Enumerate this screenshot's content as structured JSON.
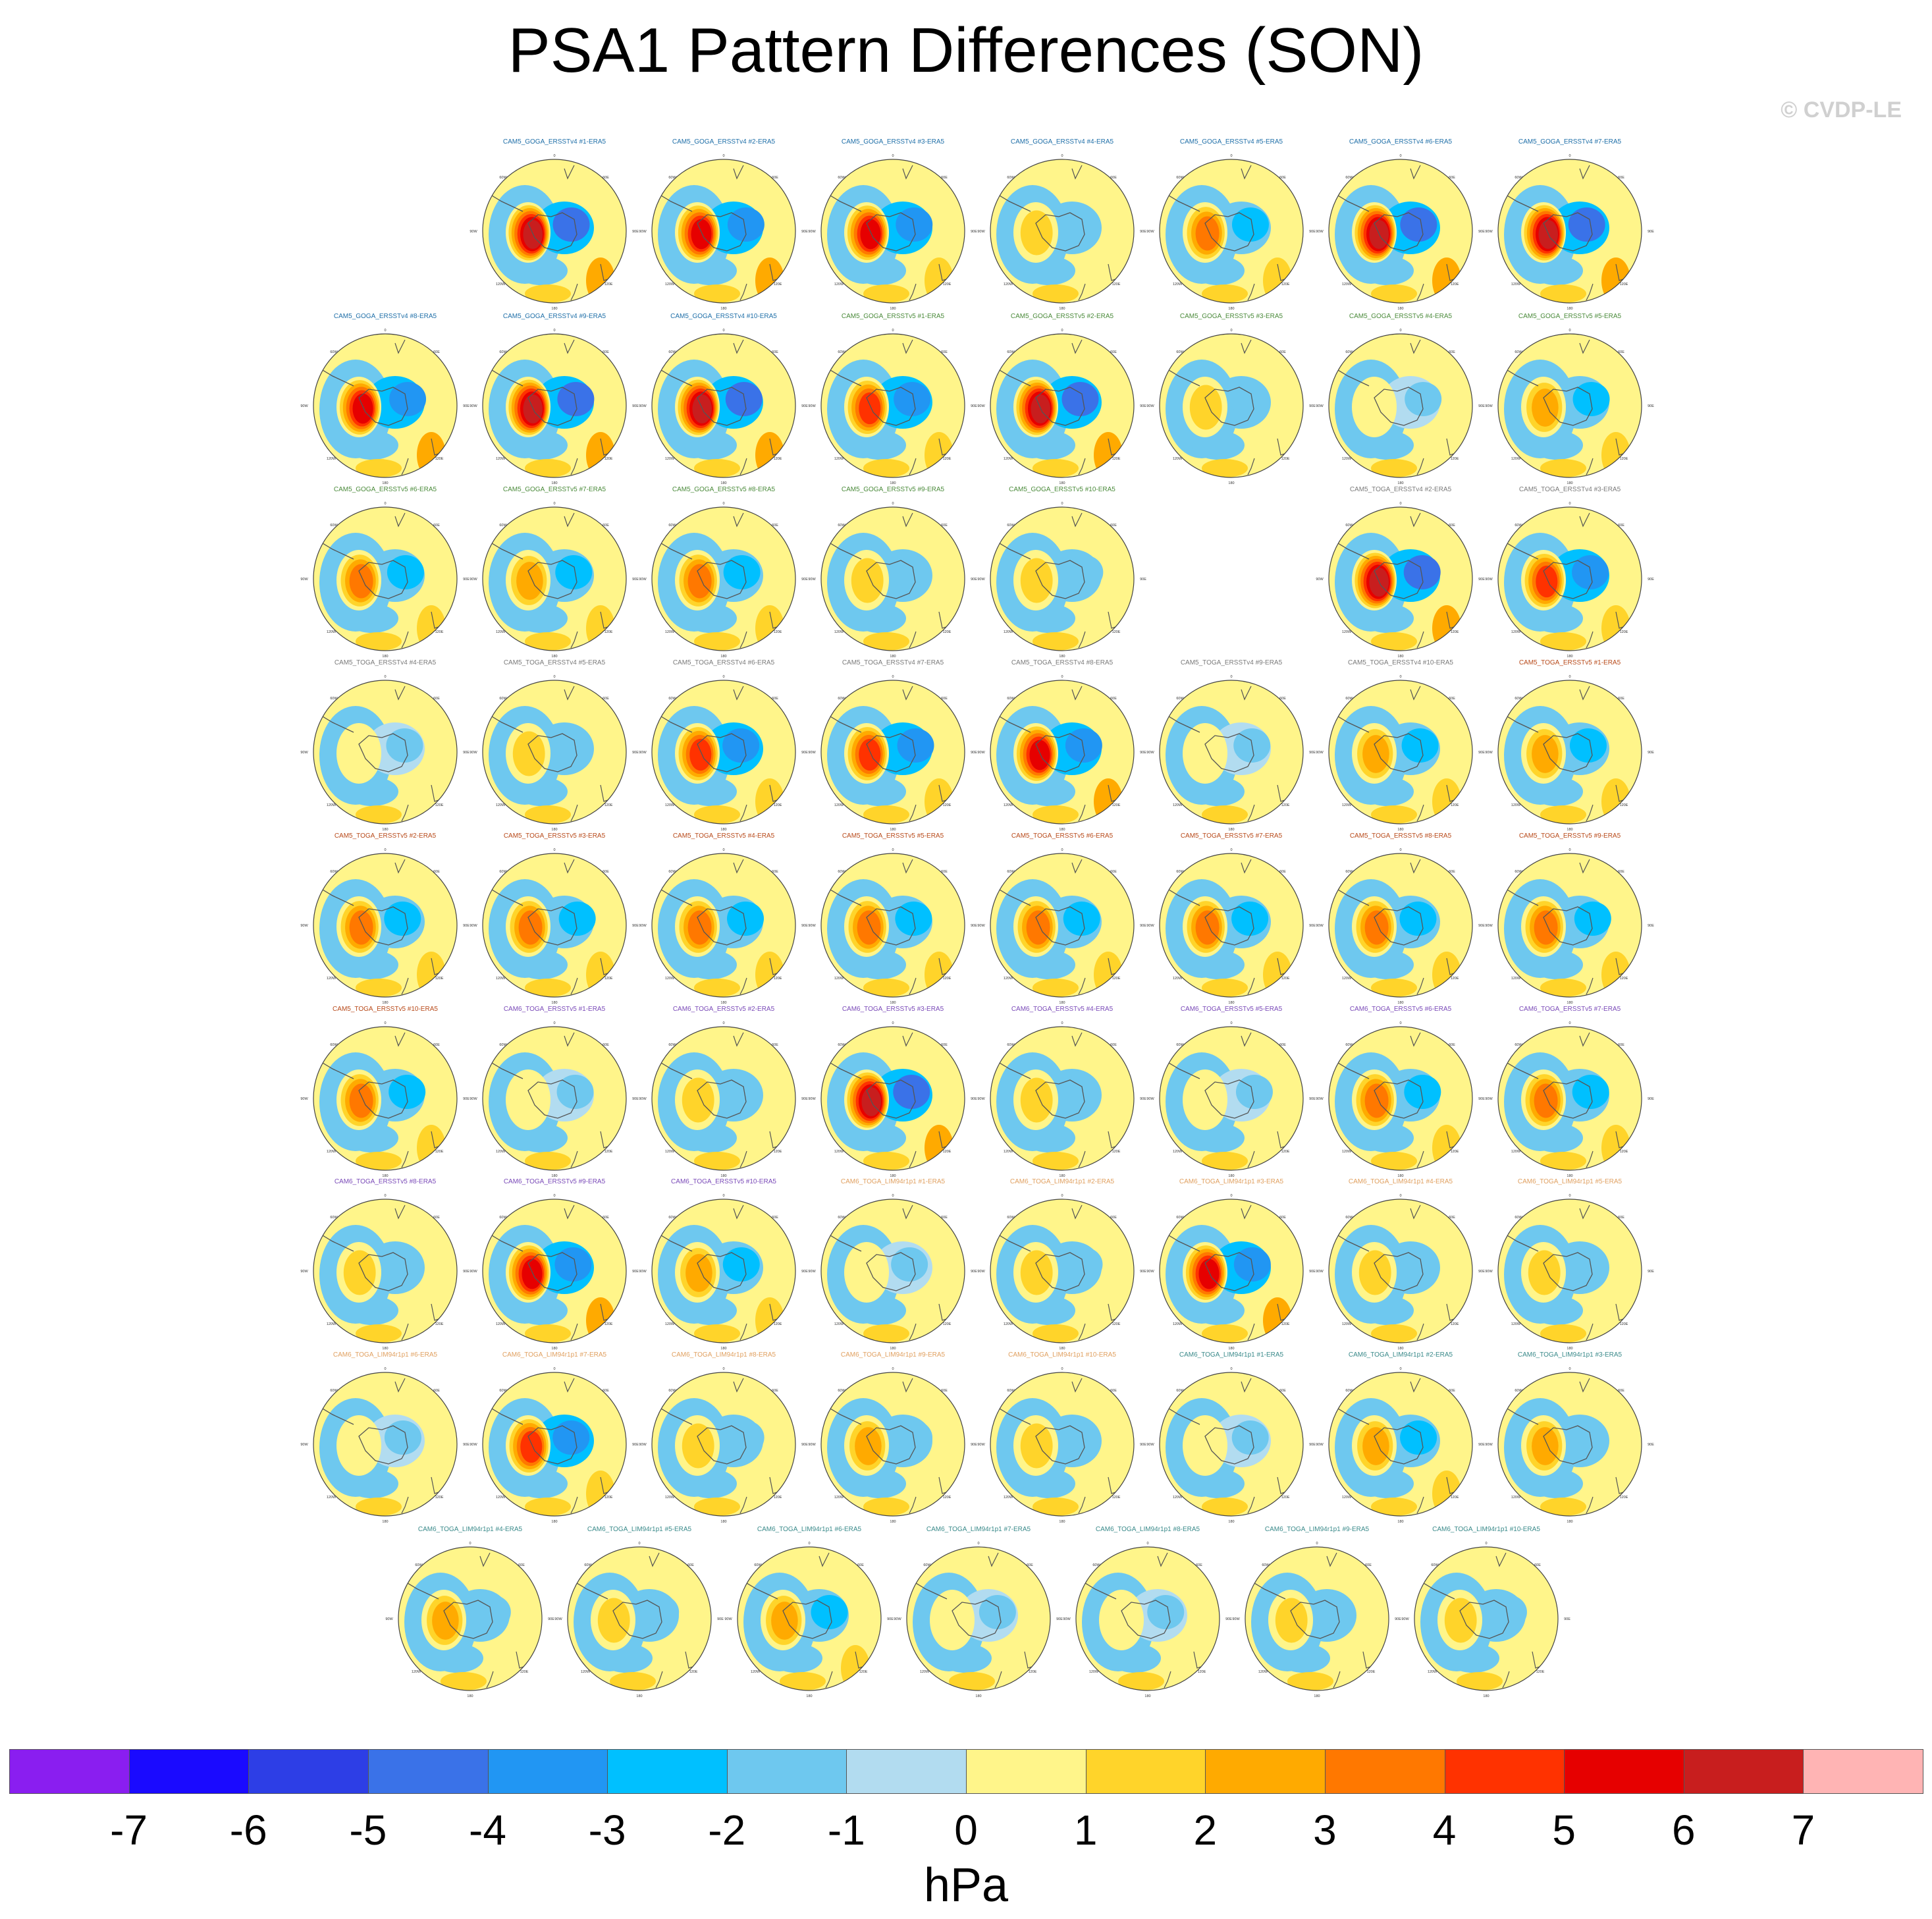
{
  "title": "PSA1 Pattern Differences (SON)",
  "watermark": "© CVDP-LE",
  "chart_data": {
    "type": "heatmap",
    "description_kind": "small-multiples polar stereographic maps (Southern Hemisphere) of PSA1 pattern differences",
    "projection_labels": {
      "top": "0",
      "left": "90W",
      "right": "90E",
      "bottom": "180",
      "diag_tl": "60W",
      "diag_tr": "60E",
      "diag_bl": "120W",
      "diag_br": "120E",
      "bot_l": "150W",
      "bot_r": "150E"
    },
    "colorbar": {
      "units": "hPa",
      "tick_labels": [
        "-7",
        "-6",
        "-5",
        "-4",
        "-3",
        "-2",
        "-1",
        "0",
        "1",
        "2",
        "3",
        "4",
        "5",
        "6",
        "7"
      ],
      "colors": [
        "#8a1ef0",
        "#1a0aff",
        "#2d3ee6",
        "#3a72e8",
        "#2196f3",
        "#00c0ff",
        "#6ec8ef",
        "#b2dcf0",
        "#fff58a",
        "#ffd42a",
        "#ffaa00",
        "#ff7800",
        "#ff3200",
        "#e60000",
        "#c81e1e",
        "#ffb4b4"
      ]
    },
    "rows": [
      [
        null,
        {
          "label": "CAM5_GOGA_ERSSTv4 #1-ERA5",
          "group": "goga_v4",
          "amp": 6.5
        },
        {
          "label": "CAM5_GOGA_ERSSTv4 #2-ERA5",
          "group": "goga_v4",
          "amp": 6
        },
        {
          "label": "CAM5_GOGA_ERSSTv4 #3-ERA5",
          "group": "goga_v4",
          "amp": 5.5
        },
        {
          "label": "CAM5_GOGA_ERSSTv4 #4-ERA5",
          "group": "goga_v4",
          "amp": 1.5
        },
        {
          "label": "CAM5_GOGA_ERSSTv4 #5-ERA5",
          "group": "goga_v4",
          "amp": 3.5
        },
        {
          "label": "CAM5_GOGA_ERSSTv4 #6-ERA5",
          "group": "goga_v4",
          "amp": 6.5
        },
        {
          "label": "CAM5_GOGA_ERSSTv4 #7-ERA5",
          "group": "goga_v4",
          "amp": 6.5
        }
      ],
      [
        {
          "label": "CAM5_GOGA_ERSSTv4 #8-ERA5",
          "group": "goga_v4",
          "amp": 6
        },
        {
          "label": "CAM5_GOGA_ERSSTv4 #9-ERA5",
          "group": "goga_v4",
          "amp": 7
        },
        {
          "label": "CAM5_GOGA_ERSSTv4 #10-ERA5",
          "group": "goga_v4",
          "amp": 6.5
        },
        {
          "label": "CAM5_GOGA_ERSSTv5 #1-ERA5",
          "group": "goga_v5",
          "amp": 5
        },
        {
          "label": "CAM5_GOGA_ERSSTv5 #2-ERA5",
          "group": "goga_v5",
          "amp": 6.5
        },
        {
          "label": "CAM5_GOGA_ERSSTv5 #3-ERA5",
          "group": "goga_v5",
          "amp": 1.5
        },
        {
          "label": "CAM5_GOGA_ERSSTv5 #4-ERA5",
          "group": "goga_v5",
          "amp": 1.2
        },
        {
          "label": "CAM5_GOGA_ERSSTv5 #5-ERA5",
          "group": "goga_v5",
          "amp": 3
        }
      ],
      [
        {
          "label": "CAM5_GOGA_ERSSTv5 #6-ERA5",
          "group": "goga_v5",
          "amp": 3.5
        },
        {
          "label": "CAM5_GOGA_ERSSTv5 #7-ERA5",
          "group": "goga_v5",
          "amp": 3
        },
        {
          "label": "CAM5_GOGA_ERSSTv5 #8-ERA5",
          "group": "goga_v5",
          "amp": 4
        },
        {
          "label": "CAM5_GOGA_ERSSTv5 #9-ERA5",
          "group": "goga_v5",
          "amp": 1.5
        },
        {
          "label": "CAM5_GOGA_ERSSTv5 #10-ERA5",
          "group": "goga_v5",
          "amp": 1.5
        },
        null,
        {
          "label": "CAM5_TOGA_ERSSTv4 #2-ERA5",
          "group": "toga_v4",
          "amp": 6.5
        },
        {
          "label": "CAM5_TOGA_ERSSTv4 #3-ERA5",
          "group": "toga_v4",
          "amp": 5
        }
      ],
      [
        {
          "label": "CAM5_TOGA_ERSSTv4 #4-ERA5",
          "group": "toga_v4",
          "amp": 1.2
        },
        {
          "label": "CAM5_TOGA_ERSSTv4 #5-ERA5",
          "group": "toga_v4",
          "amp": 2
        },
        {
          "label": "CAM5_TOGA_ERSSTv4 #6-ERA5",
          "group": "toga_v4",
          "amp": 5
        },
        {
          "label": "CAM5_TOGA_ERSSTv4 #7-ERA5",
          "group": "toga_v4",
          "amp": 5
        },
        {
          "label": "CAM5_TOGA_ERSSTv4 #8-ERA5",
          "group": "toga_v4",
          "amp": 6
        },
        {
          "label": "CAM5_TOGA_ERSSTv4 #9-ERA5",
          "group": "toga_v4",
          "amp": 1.2
        },
        {
          "label": "CAM5_TOGA_ERSSTv4 #10-ERA5",
          "group": "toga_v4",
          "amp": 3
        },
        {
          "label": "CAM5_TOGA_ERSSTv5 #1-ERA5",
          "group": "toga_v5",
          "amp": 3
        }
      ],
      [
        {
          "label": "CAM5_TOGA_ERSSTv5 #2-ERA5",
          "group": "toga_v5",
          "amp": 3.5
        },
        {
          "label": "CAM5_TOGA_ERSSTv5 #3-ERA5",
          "group": "toga_v5",
          "amp": 3.5
        },
        {
          "label": "CAM5_TOGA_ERSSTv5 #4-ERA5",
          "group": "toga_v5",
          "amp": 3.5
        },
        {
          "label": "CAM5_TOGA_ERSSTv5 #5-ERA5",
          "group": "toga_v5",
          "amp": 3.5
        },
        {
          "label": "CAM5_TOGA_ERSSTv5 #6-ERA5",
          "group": "toga_v5",
          "amp": 3.5
        },
        {
          "label": "CAM5_TOGA_ERSSTv5 #7-ERA5",
          "group": "toga_v5",
          "amp": 3.5
        },
        {
          "label": "CAM5_TOGA_ERSSTv5 #8-ERA5",
          "group": "toga_v5",
          "amp": 3.5
        },
        {
          "label": "CAM5_TOGA_ERSSTv5 #9-ERA5",
          "group": "toga_v5",
          "amp": 3.5
        }
      ],
      [
        {
          "label": "CAM5_TOGA_ERSSTv5 #10-ERA5",
          "group": "toga_v5",
          "amp": 3.5
        },
        {
          "label": "CAM6_TOGA_ERSSTv5 #1-ERA5",
          "group": "cam6_v5",
          "amp": 1.2
        },
        {
          "label": "CAM6_TOGA_ERSSTv5 #2-ERA5",
          "group": "cam6_v5",
          "amp": 2
        },
        {
          "label": "CAM6_TOGA_ERSSTv5 #3-ERA5",
          "group": "cam6_v5",
          "amp": 7
        },
        {
          "label": "CAM6_TOGA_ERSSTv5 #4-ERA5",
          "group": "cam6_v5",
          "amp": 2
        },
        {
          "label": "CAM6_TOGA_ERSSTv5 #5-ERA5",
          "group": "cam6_v5",
          "amp": 1.2
        },
        {
          "label": "CAM6_TOGA_ERSSTv5 #6-ERA5",
          "group": "cam6_v5",
          "amp": 4
        },
        {
          "label": "CAM6_TOGA_ERSSTv5 #7-ERA5",
          "group": "cam6_v5",
          "amp": 3.5
        }
      ],
      [
        {
          "label": "CAM6_TOGA_ERSSTv5 #8-ERA5",
          "group": "cam6_v5",
          "amp": 2
        },
        {
          "label": "CAM6_TOGA_ERSSTv5 #9-ERA5",
          "group": "cam6_v5",
          "amp": 6
        },
        {
          "label": "CAM6_TOGA_ERSSTv5 #10-ERA5",
          "group": "cam6_v5",
          "amp": 3
        },
        {
          "label": "CAM6_TOGA_LIM94r1p1 #1-ERA5",
          "group": "cam6_lim",
          "amp": 1.2
        },
        {
          "label": "CAM6_TOGA_LIM94r1p1 #2-ERA5",
          "group": "cam6_lim",
          "amp": 1.5
        },
        {
          "label": "CAM6_TOGA_LIM94r1p1 #3-ERA5",
          "group": "cam6_lim",
          "amp": 6
        },
        {
          "label": "CAM6_TOGA_LIM94r1p1 #4-ERA5",
          "group": "cam6_lim",
          "amp": 1.5
        },
        {
          "label": "CAM6_TOGA_LIM94r1p1 #5-ERA5",
          "group": "cam6_lim",
          "amp": 1.5
        }
      ],
      [
        {
          "label": "CAM6_TOGA_LIM94r1p1 #6-ERA5",
          "group": "cam6_lim",
          "amp": 1.2
        },
        {
          "label": "CAM6_TOGA_LIM94r1p1 #7-ERA5",
          "group": "cam6_lim",
          "amp": 5
        },
        {
          "label": "CAM6_TOGA_LIM94r1p1 #8-ERA5",
          "group": "cam6_lim",
          "amp": 1.5
        },
        {
          "label": "CAM6_TOGA_LIM94r1p1 #9-ERA5",
          "group": "cam6_lim",
          "amp": 2.5
        },
        {
          "label": "CAM6_TOGA_LIM94r1p1 #10-ERA5",
          "group": "cam6_lim",
          "amp": 1.5
        },
        {
          "label": "CAM6_TOGA_LIM94r1p1 #1-ERA5",
          "group": "cam6_lim2",
          "amp": 1.2
        },
        {
          "label": "CAM6_TOGA_LIM94r1p1 #2-ERA5",
          "group": "cam6_lim2",
          "amp": 3
        },
        {
          "label": "CAM6_TOGA_LIM94r1p1 #3-ERA5",
          "group": "cam6_lim2",
          "amp": 2.5
        }
      ],
      [
        {
          "label": "CAM6_TOGA_LIM94r1p1 #4-ERA5",
          "group": "cam6_lim2",
          "amp": 2.5
        },
        {
          "label": "CAM6_TOGA_LIM94r1p1 #5-ERA5",
          "group": "cam6_lim2",
          "amp": 1.5
        },
        {
          "label": "CAM6_TOGA_LIM94r1p1 #6-ERA5",
          "group": "cam6_lim2",
          "amp": 3
        },
        {
          "label": "CAM6_TOGA_LIM94r1p1 #7-ERA5",
          "group": "cam6_lim2",
          "amp": 1.2
        },
        {
          "label": "CAM6_TOGA_LIM94r1p1 #8-ERA5",
          "group": "cam6_lim2",
          "amp": 1.2
        },
        {
          "label": "CAM6_TOGA_LIM94r1p1 #9-ERA5",
          "group": "cam6_lim2",
          "amp": 2
        },
        {
          "label": "CAM6_TOGA_LIM94r1p1 #10-ERA5",
          "group": "cam6_lim2",
          "amp": 1.5
        }
      ]
    ],
    "group_label_colors": {
      "goga_v4": "#1f6fa8",
      "goga_v5": "#4a8a3a",
      "toga_v4": "#7a7a7a",
      "toga_v5": "#b84a1a",
      "cam6_v5": "#7a4ab8",
      "cam6_lim": "#e0a060",
      "cam6_lim2": "#3a8a8a"
    }
  }
}
